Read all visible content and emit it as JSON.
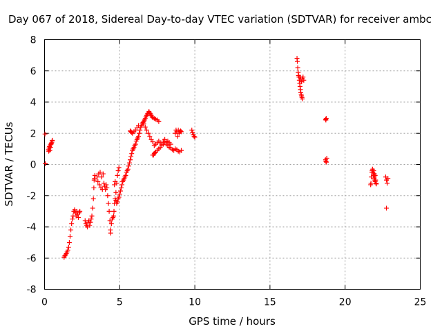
{
  "chart_data": {
    "type": "scatter",
    "title": "Day 067 of 2018, Sidereal Day-to-day VTEC variation (SDTVAR) for receiver ambc",
    "xlabel": "GPS time / hours",
    "ylabel": "SDTVAR / TECUs",
    "xlim": [
      0,
      25
    ],
    "ylim": [
      -8,
      8
    ],
    "xticks": [
      0,
      5,
      10,
      15,
      20,
      25
    ],
    "yticks": [
      -8,
      -6,
      -4,
      -2,
      0,
      2,
      4,
      6,
      8
    ],
    "x_tick_labels": [
      "0",
      "5",
      "10",
      "15",
      "20",
      "25"
    ],
    "y_tick_labels": [
      "-8",
      "-6",
      "-4",
      "-2",
      "0",
      "2",
      "4",
      "6",
      "8"
    ],
    "grid": true,
    "marker": "+",
    "color": "#ff0000",
    "series": [
      {
        "name": "SDTVAR",
        "points": [
          [
            0.03,
            1.95
          ],
          [
            0.05,
            0.05
          ],
          [
            0.25,
            0.95
          ],
          [
            0.28,
            0.85
          ],
          [
            0.3,
            1.05
          ],
          [
            0.33,
            1.15
          ],
          [
            0.35,
            0.9
          ],
          [
            0.38,
            1.25
          ],
          [
            0.4,
            1.1
          ],
          [
            0.43,
            1.3
          ],
          [
            0.45,
            1.35
          ],
          [
            0.48,
            1.4
          ],
          [
            0.5,
            1.5
          ],
          [
            0.52,
            1.55
          ],
          [
            1.3,
            -5.95
          ],
          [
            1.35,
            -5.85
          ],
          [
            1.4,
            -5.8
          ],
          [
            1.45,
            -5.7
          ],
          [
            1.5,
            -5.6
          ],
          [
            1.55,
            -5.5
          ],
          [
            1.6,
            -5.3
          ],
          [
            1.65,
            -5.0
          ],
          [
            1.7,
            -4.6
          ],
          [
            1.75,
            -4.2
          ],
          [
            1.8,
            -3.8
          ],
          [
            1.85,
            -3.5
          ],
          [
            1.9,
            -3.3
          ],
          [
            1.95,
            -3.0
          ],
          [
            2.0,
            -2.9
          ],
          [
            2.05,
            -3.1
          ],
          [
            2.1,
            -3.3
          ],
          [
            2.15,
            -3.0
          ],
          [
            2.2,
            -3.2
          ],
          [
            2.25,
            -3.4
          ],
          [
            2.3,
            -3.1
          ],
          [
            2.35,
            -3.0
          ],
          [
            2.7,
            -3.6
          ],
          [
            2.75,
            -3.8
          ],
          [
            2.8,
            -3.9
          ],
          [
            2.85,
            -4.0
          ],
          [
            2.9,
            -3.7
          ],
          [
            2.95,
            -3.6
          ],
          [
            3.0,
            -3.9
          ],
          [
            3.05,
            -3.7
          ],
          [
            3.1,
            -3.5
          ],
          [
            3.15,
            -3.3
          ],
          [
            3.2,
            -2.8
          ],
          [
            3.25,
            -2.2
          ],
          [
            3.28,
            -1.5
          ],
          [
            3.3,
            -1.0
          ],
          [
            3.32,
            -0.9
          ],
          [
            3.35,
            -0.7
          ],
          [
            3.5,
            -0.8
          ],
          [
            3.55,
            -1.1
          ],
          [
            3.6,
            -0.6
          ],
          [
            3.65,
            -1.3
          ],
          [
            3.7,
            -0.5
          ],
          [
            3.75,
            -1.5
          ],
          [
            3.8,
            -0.8
          ],
          [
            3.85,
            -1.6
          ],
          [
            3.9,
            -0.6
          ],
          [
            3.95,
            -1.2
          ],
          [
            4.0,
            -1.4
          ],
          [
            4.05,
            -1.6
          ],
          [
            4.1,
            -1.3
          ],
          [
            4.15,
            -1.5
          ],
          [
            4.2,
            -2.0
          ],
          [
            4.25,
            -2.5
          ],
          [
            4.3,
            -3.0
          ],
          [
            4.35,
            -3.6
          ],
          [
            4.38,
            -4.2
          ],
          [
            4.4,
            -4.4
          ],
          [
            4.45,
            -3.8
          ],
          [
            4.5,
            -3.5
          ],
          [
            4.55,
            -3.4
          ],
          [
            4.6,
            -3.3
          ],
          [
            4.62,
            -3.0
          ],
          [
            4.65,
            -2.5
          ],
          [
            4.7,
            -2.2
          ],
          [
            4.75,
            -1.8
          ],
          [
            4.8,
            -1.2
          ],
          [
            4.85,
            -0.7
          ],
          [
            4.9,
            -0.4
          ],
          [
            4.95,
            -0.2
          ],
          [
            4.65,
            -1.3
          ],
          [
            4.7,
            -1.1
          ],
          [
            4.75,
            -2.3
          ],
          [
            4.8,
            -2.5
          ],
          [
            4.85,
            -2.4
          ],
          [
            4.9,
            -2.2
          ],
          [
            4.95,
            -2.1
          ],
          [
            5.0,
            -1.9
          ],
          [
            5.05,
            -1.7
          ],
          [
            5.1,
            -1.5
          ],
          [
            5.15,
            -1.3
          ],
          [
            5.2,
            -1.1
          ],
          [
            5.25,
            -1.0
          ],
          [
            5.3,
            -0.9
          ],
          [
            5.35,
            -0.8
          ],
          [
            5.4,
            -0.7
          ],
          [
            5.45,
            -0.5
          ],
          [
            5.5,
            -0.4
          ],
          [
            5.55,
            -0.3
          ],
          [
            5.6,
            -0.1
          ],
          [
            5.65,
            0.1
          ],
          [
            5.7,
            0.3
          ],
          [
            5.75,
            0.5
          ],
          [
            5.8,
            0.7
          ],
          [
            5.85,
            0.9
          ],
          [
            5.9,
            1.0
          ],
          [
            5.95,
            1.1
          ],
          [
            6.0,
            1.2
          ],
          [
            6.05,
            1.3
          ],
          [
            6.1,
            1.5
          ],
          [
            6.15,
            1.6
          ],
          [
            6.2,
            1.7
          ],
          [
            6.25,
            1.8
          ],
          [
            6.3,
            2.0
          ],
          [
            6.35,
            2.2
          ],
          [
            6.4,
            2.4
          ],
          [
            6.45,
            2.5
          ],
          [
            6.5,
            2.6
          ],
          [
            6.55,
            2.7
          ],
          [
            6.6,
            2.75
          ],
          [
            6.65,
            2.85
          ],
          [
            6.7,
            2.95
          ],
          [
            6.75,
            3.05
          ],
          [
            6.8,
            3.15
          ],
          [
            6.85,
            3.25
          ],
          [
            6.9,
            3.3
          ],
          [
            6.95,
            3.4
          ],
          [
            7.0,
            3.3
          ],
          [
            7.05,
            3.25
          ],
          [
            7.1,
            3.15
          ],
          [
            7.15,
            3.05
          ],
          [
            7.2,
            3.0
          ],
          [
            7.3,
            2.95
          ],
          [
            7.4,
            2.9
          ],
          [
            7.5,
            2.85
          ],
          [
            7.6,
            2.75
          ],
          [
            5.7,
            2.15
          ],
          [
            5.75,
            2.1
          ],
          [
            5.8,
            2.05
          ],
          [
            5.85,
            2.0
          ],
          [
            5.95,
            2.1
          ],
          [
            6.05,
            2.2
          ],
          [
            6.15,
            2.35
          ],
          [
            6.25,
            2.5
          ],
          [
            6.6,
            2.6
          ],
          [
            6.7,
            2.4
          ],
          [
            6.8,
            2.2
          ],
          [
            6.9,
            2.0
          ],
          [
            7.0,
            1.8
          ],
          [
            7.1,
            1.6
          ],
          [
            7.2,
            1.45
          ],
          [
            7.2,
            0.6
          ],
          [
            7.25,
            0.6
          ],
          [
            7.3,
            0.7
          ],
          [
            7.35,
            0.75
          ],
          [
            7.4,
            0.8
          ],
          [
            7.5,
            0.9
          ],
          [
            7.6,
            1.0
          ],
          [
            7.7,
            1.1
          ],
          [
            7.8,
            1.2
          ],
          [
            7.9,
            1.3
          ],
          [
            8.0,
            1.4
          ],
          [
            8.1,
            1.45
          ],
          [
            8.2,
            1.5
          ],
          [
            8.3,
            1.4
          ],
          [
            8.4,
            1.3
          ],
          [
            7.3,
            1.2
          ],
          [
            7.4,
            1.3
          ],
          [
            7.5,
            1.4
          ],
          [
            7.6,
            1.5
          ],
          [
            7.7,
            1.4
          ],
          [
            7.8,
            1.3
          ],
          [
            7.9,
            1.5
          ],
          [
            8.0,
            1.6
          ],
          [
            8.1,
            1.3
          ],
          [
            8.2,
            1.2
          ],
          [
            8.3,
            1.1
          ],
          [
            8.4,
            1.05
          ],
          [
            8.5,
            0.95
          ],
          [
            8.6,
            0.9
          ],
          [
            8.7,
            1.0
          ],
          [
            8.8,
            0.95
          ],
          [
            8.9,
            0.85
          ],
          [
            9.0,
            0.8
          ],
          [
            9.1,
            0.9
          ],
          [
            8.7,
            2.0
          ],
          [
            8.75,
            2.2
          ],
          [
            8.8,
            2.1
          ],
          [
            8.85,
            1.8
          ],
          [
            8.9,
            2.2
          ],
          [
            8.95,
            2.0
          ],
          [
            9.0,
            2.1
          ],
          [
            9.05,
            2.15
          ],
          [
            9.1,
            2.1
          ],
          [
            9.8,
            2.2
          ],
          [
            9.85,
            2.05
          ],
          [
            9.9,
            1.9
          ],
          [
            9.95,
            1.8
          ],
          [
            10.0,
            1.75
          ],
          [
            16.8,
            6.8
          ],
          [
            16.82,
            6.6
          ],
          [
            16.85,
            6.2
          ],
          [
            16.88,
            5.9
          ],
          [
            16.9,
            5.7
          ],
          [
            16.93,
            5.6
          ],
          [
            16.95,
            5.4
          ],
          [
            16.98,
            5.2
          ],
          [
            17.0,
            5.0
          ],
          [
            17.03,
            4.8
          ],
          [
            17.05,
            4.6
          ],
          [
            17.08,
            4.5
          ],
          [
            17.1,
            4.4
          ],
          [
            17.13,
            4.3
          ],
          [
            17.15,
            4.2
          ],
          [
            17.0,
            5.6
          ],
          [
            17.05,
            5.5
          ],
          [
            17.1,
            5.3
          ],
          [
            17.15,
            5.5
          ],
          [
            17.2,
            5.6
          ],
          [
            17.25,
            5.4
          ],
          [
            18.7,
            2.9
          ],
          [
            18.72,
            2.85
          ],
          [
            18.75,
            2.95
          ],
          [
            18.7,
            0.3
          ],
          [
            18.72,
            0.2
          ],
          [
            18.75,
            0.15
          ],
          [
            18.78,
            0.4
          ],
          [
            21.7,
            -1.3
          ],
          [
            21.72,
            -1.2
          ],
          [
            21.75,
            -0.8
          ],
          [
            21.78,
            -0.5
          ],
          [
            21.8,
            -0.4
          ],
          [
            21.82,
            -0.3
          ],
          [
            21.85,
            -0.5
          ],
          [
            21.88,
            -0.7
          ],
          [
            21.9,
            -0.6
          ],
          [
            21.93,
            -0.9
          ],
          [
            21.95,
            -0.8
          ],
          [
            21.98,
            -1.0
          ],
          [
            22.0,
            -1.1
          ],
          [
            22.03,
            -1.0
          ],
          [
            22.05,
            -1.2
          ],
          [
            22.08,
            -1.25
          ],
          [
            21.9,
            -0.4
          ],
          [
            21.95,
            -0.6
          ],
          [
            22.0,
            -0.7
          ],
          [
            22.7,
            -0.8
          ],
          [
            22.75,
            -1.0
          ],
          [
            22.8,
            -1.2
          ],
          [
            22.85,
            -0.9
          ],
          [
            22.75,
            -2.8
          ]
        ]
      }
    ]
  }
}
